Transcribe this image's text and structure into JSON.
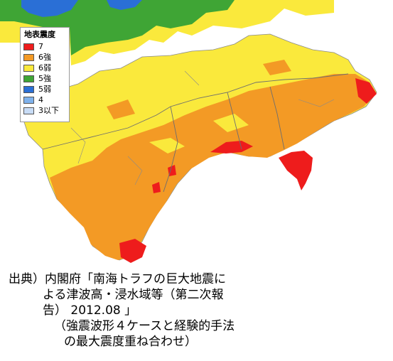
{
  "legend": {
    "title": "地表震度",
    "items": [
      {
        "label": "7",
        "color": "#ee1c1c"
      },
      {
        "label": "6強",
        "color": "#f39a25"
      },
      {
        "label": "6弱",
        "color": "#fae93c"
      },
      {
        "label": "5強",
        "color": "#3fa535"
      },
      {
        "label": "5弱",
        "color": "#2a6fd6"
      },
      {
        "label": "4",
        "color": "#7fb2ec"
      },
      {
        "label": "3以下",
        "color": "#c8dcf6"
      }
    ]
  },
  "caption": {
    "line1": "出典）内閣府「南海トラフの巨大地震に",
    "line2": "よる津波高・浸水域等（第二次報",
    "line3": "告） 2012.08 」",
    "line4": "（強震波形４ケースと経験的手法",
    "line5": "の最大震度重ね合わせ）"
  }
}
